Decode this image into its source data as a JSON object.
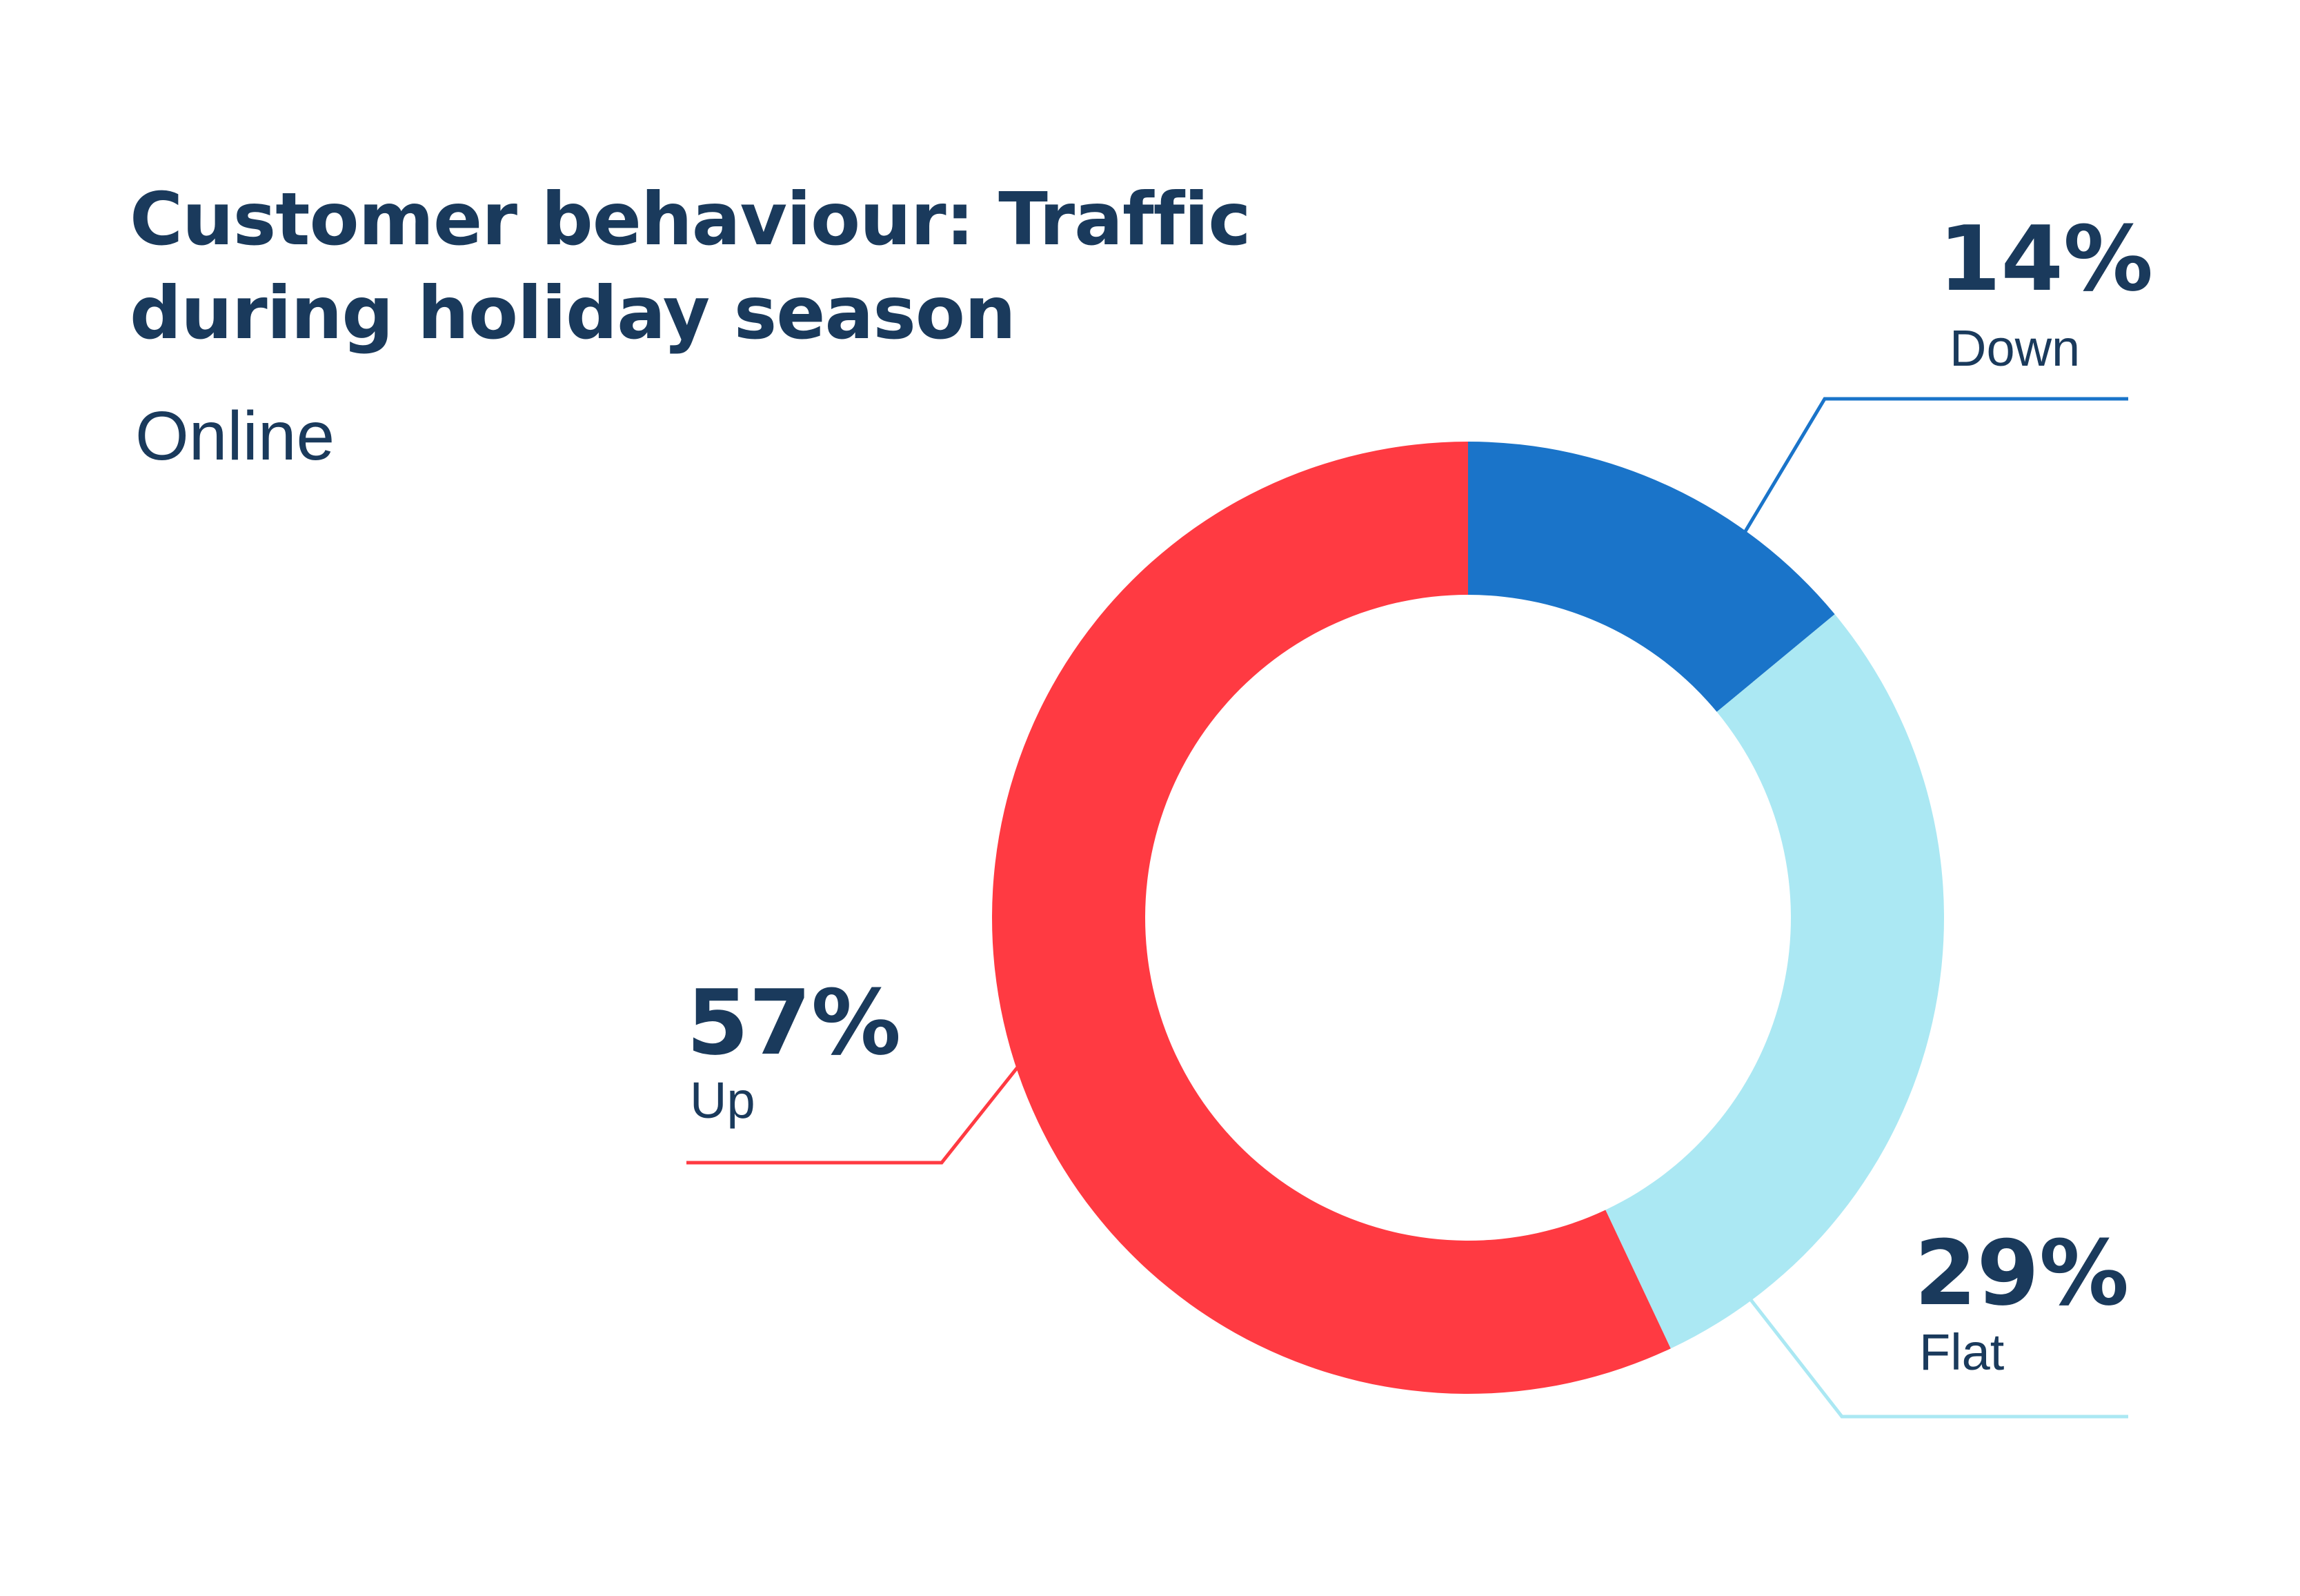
{
  "title": {
    "line1": "Customer behaviour: Traffic",
    "line2": "during holiday season"
  },
  "subtitle": "Online",
  "colors": {
    "text": "#1a3a5c",
    "up": "#ff3a42",
    "down": "#1a74c9",
    "flat": "#abe8f3"
  },
  "chart_data": {
    "type": "pie",
    "title": "Customer behaviour: Traffic during holiday season",
    "subtitle": "Online",
    "donut": true,
    "slices": [
      {
        "label": "Down",
        "value": 14,
        "display": "14%",
        "color": "#1a74c9"
      },
      {
        "label": "Flat",
        "value": 29,
        "display": "29%",
        "color": "#abe8f3"
      },
      {
        "label": "Up",
        "value": 57,
        "display": "57%",
        "color": "#ff3a42"
      }
    ]
  }
}
